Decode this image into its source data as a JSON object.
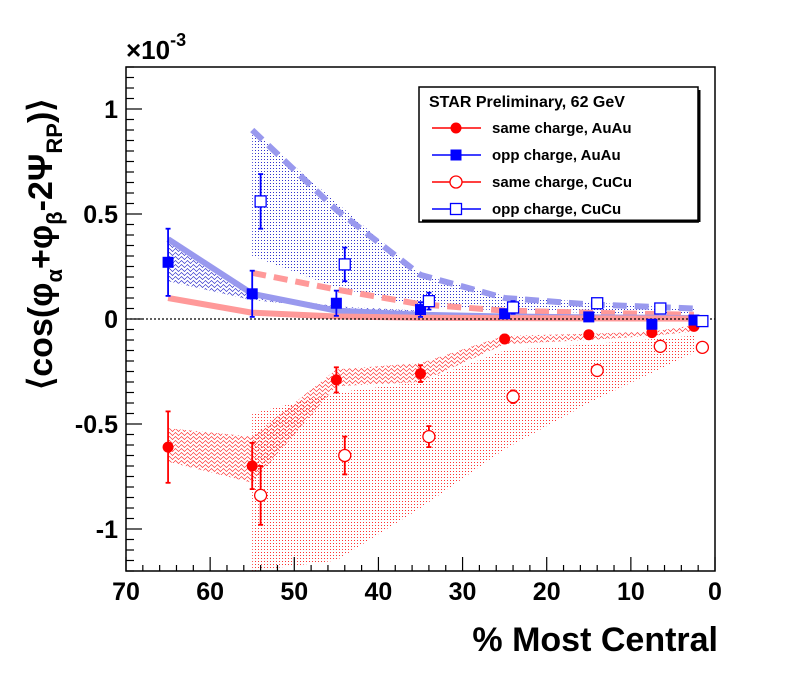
{
  "chart_data": {
    "type": "scatter",
    "title": "",
    "xlabel": "% Most Central",
    "ylabel_parts": {
      "open": "⟨cos(φ",
      "a": "α",
      "plus": "+φ",
      "b": "β",
      "minus": "-2Ψ",
      "rp": "RP",
      "close": ")⟩"
    },
    "y_exponent": "×10",
    "y_exponent_power": "-3",
    "xlim": [
      70,
      0
    ],
    "ylim": [
      -1.2,
      1.2
    ],
    "x_ticks": [
      "70",
      "60",
      "50",
      "40",
      "30",
      "20",
      "10",
      "0"
    ],
    "y_ticks": [
      "-1",
      "-0.5",
      "0",
      "0.5",
      "1"
    ],
    "grid": false,
    "legend": {
      "title": "STAR Preliminary,  62 GeV",
      "position": "top-right",
      "entries": [
        "same charge, AuAu",
        "opp charge, AuAu",
        "same charge, CuCu",
        "opp charge, CuCu"
      ]
    },
    "series": [
      {
        "name": "same charge, AuAu",
        "color": "#ff0000",
        "marker": "filled-circle",
        "points": [
          {
            "x": 65,
            "y": -0.61,
            "err": 0.17
          },
          {
            "x": 55,
            "y": -0.7,
            "err": 0.11
          },
          {
            "x": 45,
            "y": -0.29,
            "err": 0.06
          },
          {
            "x": 35,
            "y": -0.26,
            "err": 0.04
          },
          {
            "x": 25,
            "y": -0.095,
            "err": 0.02
          },
          {
            "x": 15,
            "y": -0.075,
            "err": 0.015
          },
          {
            "x": 7.5,
            "y": -0.065,
            "err": 0.012
          },
          {
            "x": 2.5,
            "y": -0.035,
            "err": 0.01
          }
        ]
      },
      {
        "name": "opp charge, AuAu",
        "color": "#0000ff",
        "marker": "filled-square",
        "points": [
          {
            "x": 65,
            "y": 0.27,
            "err": 0.16
          },
          {
            "x": 55,
            "y": 0.12,
            "err": 0.11
          },
          {
            "x": 45,
            "y": 0.075,
            "err": 0.06
          },
          {
            "x": 35,
            "y": 0.045,
            "err": 0.035
          },
          {
            "x": 25,
            "y": 0.025,
            "err": 0.02
          },
          {
            "x": 15,
            "y": 0.01,
            "err": 0.015
          },
          {
            "x": 7.5,
            "y": -0.025,
            "err": 0.012
          },
          {
            "x": 2.5,
            "y": -0.005,
            "err": 0.01
          }
        ]
      },
      {
        "name": "same charge, CuCu",
        "color": "#ff0000",
        "marker": "open-circle",
        "points": [
          {
            "x": 54,
            "y": -0.84,
            "err": 0.14
          },
          {
            "x": 44,
            "y": -0.65,
            "err": 0.09
          },
          {
            "x": 34,
            "y": -0.56,
            "err": 0.05
          },
          {
            "x": 24,
            "y": -0.37,
            "err": 0.03
          },
          {
            "x": 14,
            "y": -0.245,
            "err": 0.02
          },
          {
            "x": 6.5,
            "y": -0.13,
            "err": 0.015
          },
          {
            "x": 1.5,
            "y": -0.135,
            "err": 0.01
          }
        ]
      },
      {
        "name": "opp charge, CuCu",
        "color": "#0000ff",
        "marker": "open-square",
        "points": [
          {
            "x": 54,
            "y": 0.56,
            "err": 0.13
          },
          {
            "x": 44,
            "y": 0.26,
            "err": 0.08
          },
          {
            "x": 34,
            "y": 0.085,
            "err": 0.04
          },
          {
            "x": 24,
            "y": 0.055,
            "err": 0.03
          },
          {
            "x": 14,
            "y": 0.075,
            "err": 0.02
          },
          {
            "x": 6.5,
            "y": 0.05,
            "err": 0.015
          },
          {
            "x": 1.5,
            "y": -0.01,
            "err": 0.01
          }
        ]
      }
    ],
    "bands": [
      {
        "name": "opp charge CuCu systematic",
        "color": "#3333cc",
        "pattern": "dots",
        "upper": [
          {
            "x": 55,
            "y": 0.9
          },
          {
            "x": 35,
            "y": 0.21
          },
          {
            "x": 25,
            "y": 0.11
          },
          {
            "x": 15,
            "y": 0.08
          },
          {
            "x": 7.5,
            "y": 0.06
          },
          {
            "x": 2.5,
            "y": 0.05
          }
        ],
        "lower": [
          {
            "x": 55,
            "y": 0.3
          },
          {
            "x": 45,
            "y": 0.15
          },
          {
            "x": 35,
            "y": 0.06
          },
          {
            "x": 25,
            "y": 0.04
          },
          {
            "x": 15,
            "y": 0.03
          },
          {
            "x": 2.5,
            "y": 0.02
          }
        ]
      },
      {
        "name": "opp charge AuAu systematic",
        "color": "#3333cc",
        "pattern": "waves",
        "upper": [
          {
            "x": 65,
            "y": 0.38
          },
          {
            "x": 55,
            "y": 0.12
          },
          {
            "x": 45,
            "y": 0.06
          },
          {
            "x": 35,
            "y": 0.04
          }
        ],
        "lower": [
          {
            "x": 65,
            "y": 0.18
          },
          {
            "x": 55,
            "y": 0.09
          },
          {
            "x": 45,
            "y": 0.05
          },
          {
            "x": 35,
            "y": 0.035
          }
        ]
      },
      {
        "name": "same charge AuAu systematic",
        "color": "#ff0000",
        "pattern": "waves",
        "upper": [
          {
            "x": 65,
            "y": -0.52
          },
          {
            "x": 55,
            "y": -0.56
          },
          {
            "x": 45,
            "y": -0.24
          },
          {
            "x": 35,
            "y": -0.21
          },
          {
            "x": 25,
            "y": -0.08
          },
          {
            "x": 15,
            "y": -0.07
          },
          {
            "x": 7.5,
            "y": -0.06
          },
          {
            "x": 2.5,
            "y": -0.03
          }
        ],
        "lower": [
          {
            "x": 65,
            "y": -0.68
          },
          {
            "x": 55,
            "y": -0.78
          },
          {
            "x": 45,
            "y": -0.32
          },
          {
            "x": 35,
            "y": -0.3
          },
          {
            "x": 25,
            "y": -0.12
          },
          {
            "x": 15,
            "y": -0.1
          },
          {
            "x": 7.5,
            "y": -0.08
          },
          {
            "x": 2.5,
            "y": -0.06
          }
        ]
      },
      {
        "name": "same charge CuCu systematic",
        "color": "#ff0000",
        "pattern": "dots",
        "upper": [
          {
            "x": 55,
            "y": -0.45
          },
          {
            "x": 45,
            "y": -0.35
          },
          {
            "x": 35,
            "y": -0.3
          },
          {
            "x": 25,
            "y": -0.15
          },
          {
            "x": 15,
            "y": -0.12
          },
          {
            "x": 2.5,
            "y": -0.08
          }
        ],
        "lower": [
          {
            "x": 55,
            "y": -1.2
          },
          {
            "x": 45,
            "y": -1.15
          },
          {
            "x": 35,
            "y": -0.9
          },
          {
            "x": 25,
            "y": -0.62
          },
          {
            "x": 15,
            "y": -0.4
          },
          {
            "x": 2.5,
            "y": -0.16
          }
        ]
      }
    ],
    "model_curves": [
      {
        "name": "opp charge CuCu model",
        "color": "#9999ee",
        "style": "dashed",
        "points": [
          {
            "x": 55,
            "y": 0.9
          },
          {
            "x": 45,
            "y": 0.52
          },
          {
            "x": 35,
            "y": 0.21
          },
          {
            "x": 25,
            "y": 0.1
          },
          {
            "x": 15,
            "y": 0.07
          },
          {
            "x": 2.5,
            "y": 0.05
          }
        ]
      },
      {
        "name": "same charge CuCu model",
        "color": "#ff9999",
        "style": "dashed",
        "points": [
          {
            "x": 55,
            "y": 0.22
          },
          {
            "x": 45,
            "y": 0.14
          },
          {
            "x": 35,
            "y": 0.07
          },
          {
            "x": 25,
            "y": 0.04
          },
          {
            "x": 15,
            "y": 0.03
          },
          {
            "x": 2.5,
            "y": 0.02
          }
        ]
      },
      {
        "name": "opp charge AuAu model",
        "color": "#9999ee",
        "style": "solid",
        "points": [
          {
            "x": 65,
            "y": 0.38
          },
          {
            "x": 55,
            "y": 0.12
          },
          {
            "x": 45,
            "y": 0.04
          },
          {
            "x": 35,
            "y": 0.02
          },
          {
            "x": 25,
            "y": 0.012
          },
          {
            "x": 15,
            "y": 0.008
          },
          {
            "x": 2.5,
            "y": 0.005
          }
        ]
      },
      {
        "name": "same charge AuAu model",
        "color": "#ff9999",
        "style": "solid",
        "points": [
          {
            "x": 65,
            "y": 0.1
          },
          {
            "x": 55,
            "y": 0.03
          },
          {
            "x": 45,
            "y": 0.012
          },
          {
            "x": 35,
            "y": 0.006
          },
          {
            "x": 25,
            "y": 0.004
          },
          {
            "x": 2.5,
            "y": 0.002
          }
        ]
      }
    ],
    "reference_line": {
      "y": 0,
      "style": "dotted"
    }
  }
}
